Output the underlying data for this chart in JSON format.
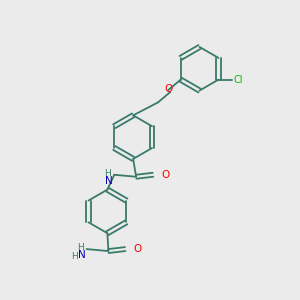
{
  "background_color": "#ebebeb",
  "bond_color": "#3a7a6a",
  "atom_colors": {
    "O": "#ff0000",
    "N": "#0000bb",
    "Cl": "#00bb00",
    "H": "#3a7a6a"
  },
  "figsize": [
    3.0,
    3.0
  ],
  "dpi": 100,
  "lw": 1.3,
  "r": 22
}
